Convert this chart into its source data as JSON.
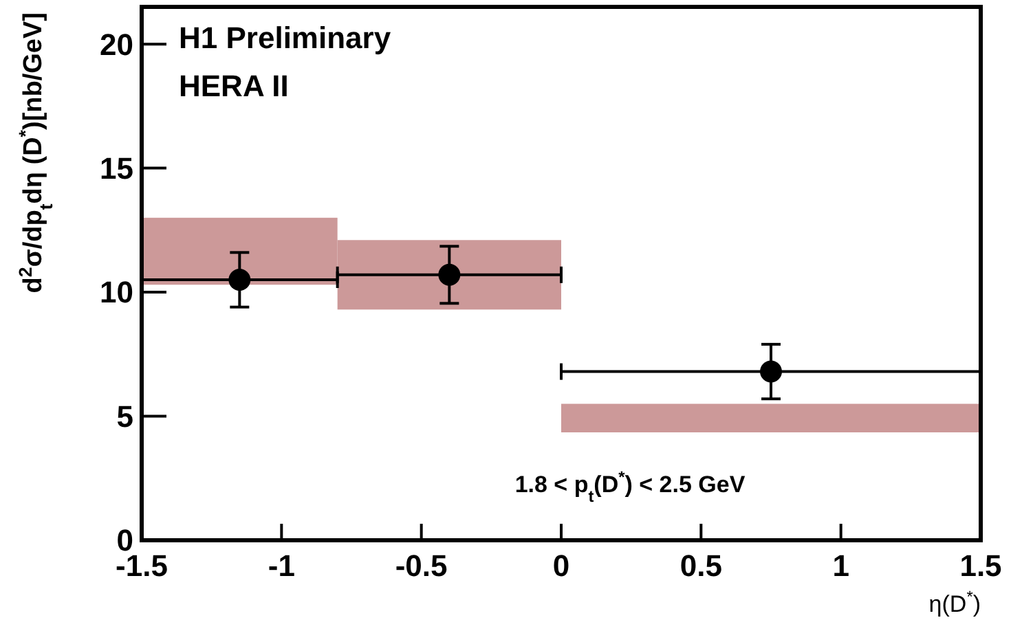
{
  "chart_data": {
    "type": "scatter",
    "xlabel": "η(D$^{*}$)",
    "ylabel": "d$^{2}$σ/dp$_{t}$dη (D$^{*}$)[nb/GeV]",
    "xlim": [
      -1.5,
      1.5
    ],
    "xticks": [
      -1.5,
      -1,
      -0.5,
      0,
      0.5,
      1,
      1.5
    ],
    "ylim": [
      0,
      21.5
    ],
    "yticks": [
      0,
      5,
      10,
      15,
      20
    ],
    "grid": false,
    "marker": "circle",
    "series": [
      {
        "type": "histogram",
        "color": "#cc9999",
        "bins": [
          -1.5,
          -0.8,
          0,
          1.5
        ],
        "base": [
          10.3,
          9.3,
          4.35
        ],
        "values": [
          2.7,
          2.8,
          1.15
        ]
      },
      {
        "color": "#000000",
        "x": [
          -1.15,
          -0.4,
          0.75
        ],
        "values": [
          10.5,
          10.7,
          6.8
        ],
        "errors": [
          1.1,
          1.15,
          1.1
        ],
        "xerrors": [
          0.35,
          0.4,
          0.75
        ]
      }
    ],
    "annotations": [
      "H1 Preliminary",
      "HERA II",
      "1.8 < p$_{t}$(D$^{*}$) < 2.5 GeV"
    ]
  }
}
